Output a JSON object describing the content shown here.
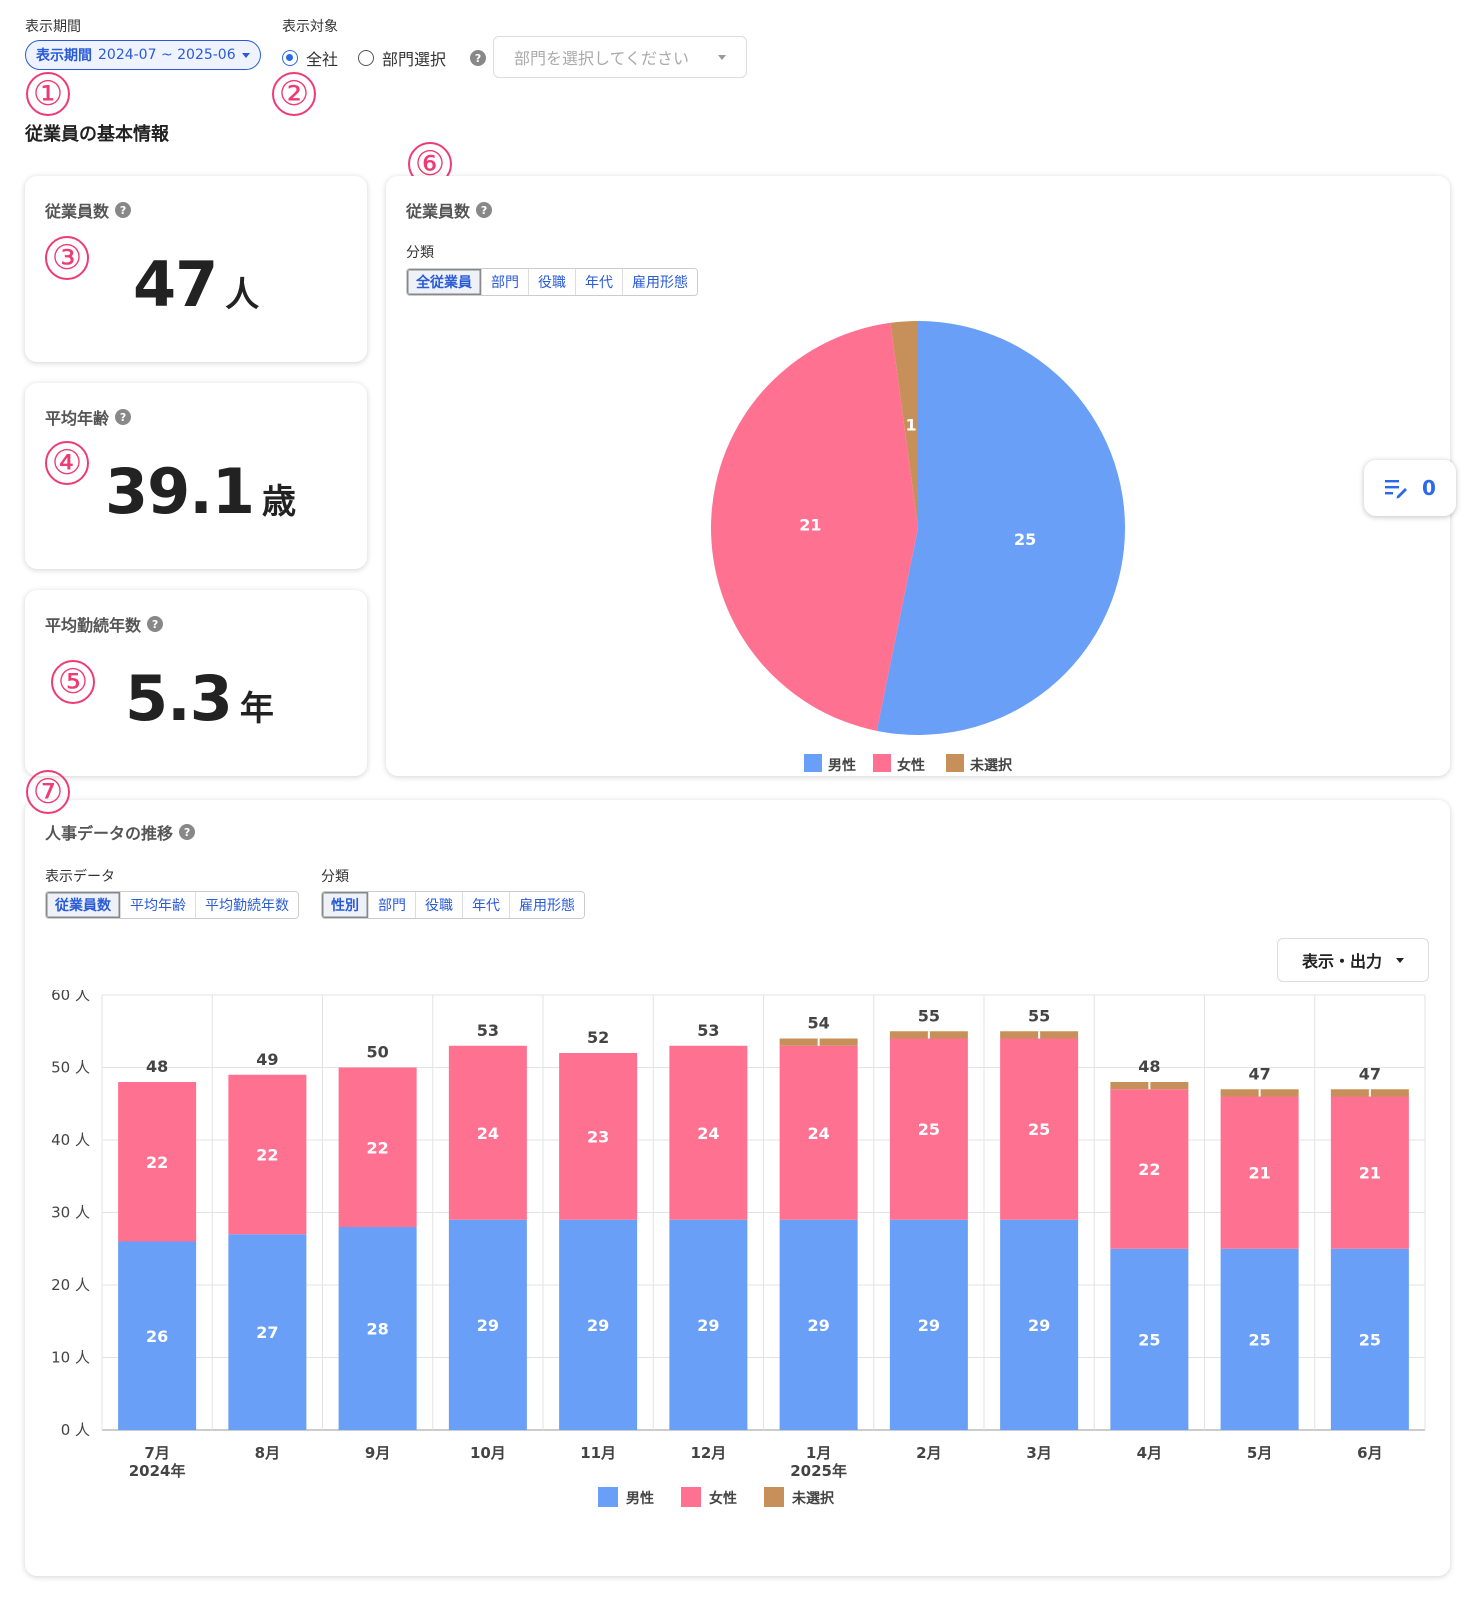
{
  "header": {
    "period_label": "表示期間",
    "period_button_prefix": "表示期間",
    "period_button_range": "2024-07 ~ 2025-06",
    "target_label": "表示対象",
    "radio_all": "全社",
    "radio_dept": "部門選択",
    "dept_placeholder": "部門を選択してください"
  },
  "markers": [
    "①",
    "②",
    "③",
    "④",
    "⑤",
    "⑥",
    "⑦"
  ],
  "section_title": "従業員の基本情報",
  "cards": {
    "employees": {
      "title": "従業員数",
      "value": "47",
      "unit": "人"
    },
    "age": {
      "title": "平均年齢",
      "value": "39.1",
      "unit": "歳"
    },
    "tenure": {
      "title": "平均勤続年数",
      "value": "5.3",
      "unit": "年"
    }
  },
  "pie_card": {
    "title": "従業員数",
    "category_label": "分類",
    "tabs": [
      "全従業員",
      "部門",
      "役職",
      "年代",
      "雇用形態"
    ],
    "active_tab": "全従業員"
  },
  "float_button": {
    "count": "0"
  },
  "trend_card": {
    "title": "人事データの推移",
    "data_label": "表示データ",
    "data_tabs": [
      "従業員数",
      "平均年齢",
      "平均勤続年数"
    ],
    "category_label": "分類",
    "category_tabs": [
      "性別",
      "部門",
      "役職",
      "年代",
      "雇用形態"
    ],
    "output_button": "表示・出力"
  },
  "colors": {
    "male": "#6a9ff8",
    "female": "#ff7191",
    "unselected": "#c7905a",
    "accent": "#2a5bd7",
    "marker": "#ee3b74"
  },
  "chart_data": [
    {
      "type": "pie",
      "labels": [
        "男性",
        "女性",
        "未選択"
      ],
      "values": [
        25,
        21,
        1
      ]
    },
    {
      "type": "bar",
      "stacked": true,
      "categories": [
        "7月\n2024年",
        "8月",
        "9月",
        "10月",
        "11月",
        "12月",
        "1月\n2025年",
        "2月",
        "3月",
        "4月",
        "5月",
        "6月"
      ],
      "series": [
        {
          "name": "男性",
          "values": [
            26,
            27,
            28,
            29,
            29,
            29,
            29,
            29,
            29,
            25,
            25,
            25
          ]
        },
        {
          "name": "女性",
          "values": [
            22,
            22,
            22,
            24,
            23,
            24,
            24,
            25,
            25,
            22,
            21,
            21
          ]
        },
        {
          "name": "未選択",
          "values": [
            0,
            0,
            0,
            0,
            0,
            0,
            1,
            1,
            1,
            1,
            1,
            1
          ]
        }
      ],
      "totals": [
        48,
        49,
        50,
        53,
        52,
        53,
        54,
        55,
        55,
        48,
        47,
        47
      ],
      "y_ticks": [
        "0 人",
        "10 人",
        "20 人",
        "30 人",
        "40 人",
        "50 人",
        "60 人"
      ],
      "ylim": [
        0,
        60
      ],
      "grid": true,
      "legend": "bottom-center"
    }
  ]
}
